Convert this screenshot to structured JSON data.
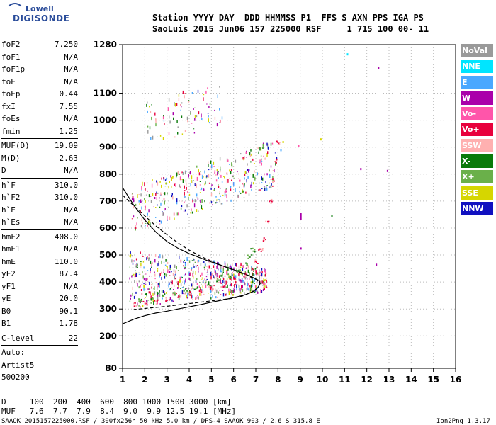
{
  "logo": {
    "line1": "Lowell",
    "line2": "DIGISONDE"
  },
  "header": {
    "line1": "Station YYYY DAY  DDD HHMMSS P1  FFS S AXN PPS IGA PS",
    "line2": "SaoLuis 2015 Jun06 157 225000 RSF     1 715 100 00- 11"
  },
  "params": {
    "group1": [
      {
        "k": "foF2",
        "v": "7.250"
      },
      {
        "k": "foF1",
        "v": "N/A"
      },
      {
        "k": "foF1p",
        "v": "N/A"
      },
      {
        "k": "foE",
        "v": "N/A"
      },
      {
        "k": "foEp",
        "v": "0.44"
      },
      {
        "k": "fxI",
        "v": "7.55"
      },
      {
        "k": "foEs",
        "v": "N/A"
      },
      {
        "k": "fmin",
        "v": "1.25"
      }
    ],
    "group2": [
      {
        "k": "MUF(D)",
        "v": "19.09"
      },
      {
        "k": "M(D)",
        "v": "2.63"
      },
      {
        "k": "D",
        "v": "N/A"
      }
    ],
    "group3": [
      {
        "k": "h`F",
        "v": "310.0"
      },
      {
        "k": "h`F2",
        "v": "310.0"
      },
      {
        "k": "h`E",
        "v": "N/A"
      },
      {
        "k": "h`Es",
        "v": "N/A"
      }
    ],
    "group4": [
      {
        "k": "hmF2",
        "v": "408.0"
      },
      {
        "k": "hmF1",
        "v": "N/A"
      },
      {
        "k": "hmE",
        "v": "110.0"
      },
      {
        "k": "yF2",
        "v": "87.4"
      },
      {
        "k": "yF1",
        "v": "N/A"
      },
      {
        "k": "yE",
        "v": "20.0"
      },
      {
        "k": "B0",
        "v": "90.1"
      },
      {
        "k": "B1",
        "v": "1.78"
      }
    ],
    "clevel": {
      "k": "C-level",
      "v": "22"
    },
    "auto": [
      "Auto:",
      "Artist5",
      "500200"
    ]
  },
  "legend": [
    {
      "label": "NoVal",
      "color": "#9a9a9a"
    },
    {
      "label": "NNE",
      "color": "#00e5ff"
    },
    {
      "label": "E",
      "color": "#4aa8ff"
    },
    {
      "label": "W",
      "color": "#aa00aa"
    },
    {
      "label": "Vo-",
      "color": "#ff55aa"
    },
    {
      "label": "Vo+",
      "color": "#e8003c"
    },
    {
      "label": "SSW",
      "color": "#ffb0b0"
    },
    {
      "label": "X-",
      "color": "#0a7a0a"
    },
    {
      "label": "X+",
      "color": "#6ab04a"
    },
    {
      "label": "SSE",
      "color": "#d6d600"
    },
    {
      "label": "NNW",
      "color": "#1010c0"
    }
  ],
  "footer": {
    "row1": "D     100  200  400  600  800 1000 1500 3000 [km]",
    "row2": "MUF   7.6  7.7  7.9  8.4  9.0  9.9 12.5 19.1 [MHz]",
    "file": "SAAOK_2015157225000.RSF / 300fx256h 50 kHz 5.0 km / DPS-4 SAAOK 903 / 2.6 S 315.8 E",
    "version": "Ion2Png 1.3.17"
  },
  "chart_data": {
    "type": "scatter",
    "xlabel": "",
    "ylabel": "",
    "xlim": [
      1,
      16
    ],
    "ylim": [
      80,
      1280
    ],
    "xticks": [
      1,
      2,
      3,
      4,
      5,
      6,
      7,
      8,
      9,
      10,
      11,
      12,
      13,
      14,
      15,
      16
    ],
    "yticks": [
      80,
      200,
      300,
      400,
      500,
      600,
      700,
      800,
      900,
      1000,
      1100,
      1280
    ],
    "grid": "dotted",
    "legend_placement": "right",
    "traces": [
      {
        "name": "true-height-profile",
        "style": "solid",
        "points": [
          [
            1,
            245
          ],
          [
            1.5,
            262
          ],
          [
            2,
            275
          ],
          [
            2.5,
            285
          ],
          [
            3,
            292
          ],
          [
            3.5,
            300
          ],
          [
            4,
            308
          ],
          [
            4.5,
            316
          ],
          [
            5,
            325
          ],
          [
            5.5,
            333
          ],
          [
            6,
            342
          ],
          [
            6.5,
            352
          ],
          [
            6.9,
            365
          ],
          [
            7.1,
            380
          ],
          [
            7.2,
            395
          ],
          [
            7.15,
            405
          ],
          [
            6.8,
            420
          ],
          [
            6.2,
            440
          ],
          [
            5.5,
            460
          ],
          [
            4.8,
            480
          ],
          [
            4,
            505
          ],
          [
            3.5,
            525
          ],
          [
            3,
            550
          ],
          [
            2.5,
            585
          ],
          [
            2,
            630
          ],
          [
            1.5,
            685
          ],
          [
            1,
            750
          ]
        ]
      },
      {
        "name": "model-trace",
        "style": "dashed",
        "points": [
          [
            1,
            722
          ],
          [
            1.5,
            683
          ],
          [
            2,
            645
          ],
          [
            2.5,
            608
          ],
          [
            3,
            575
          ],
          [
            3.5,
            545
          ],
          [
            4,
            518
          ],
          [
            4.5,
            496
          ],
          [
            5,
            477
          ],
          [
            5.5,
            460
          ],
          [
            6,
            444
          ],
          [
            6.5,
            428
          ],
          [
            7,
            410
          ],
          [
            7.2,
            395
          ],
          [
            7.1,
            380
          ],
          [
            6.8,
            362
          ],
          [
            6.4,
            348
          ],
          [
            6,
            340
          ],
          [
            5,
            330
          ],
          [
            4,
            320
          ],
          [
            3,
            310
          ],
          [
            2,
            302
          ],
          [
            1.5,
            298
          ]
        ]
      },
      {
        "name": "o-trace",
        "style": "points",
        "points": [
          [
            1.5,
            318
          ],
          [
            2,
            322
          ],
          [
            2.5,
            328
          ],
          [
            3,
            338
          ],
          [
            3.5,
            348
          ],
          [
            4,
            358
          ],
          [
            4.5,
            368
          ],
          [
            5,
            378
          ],
          [
            5.5,
            392
          ],
          [
            6,
            408
          ],
          [
            6.5,
            428
          ],
          [
            6.8,
            450
          ],
          [
            7,
            478
          ],
          [
            7.2,
            520
          ],
          [
            7.35,
            560
          ],
          [
            7.5,
            620
          ],
          [
            7.65,
            700
          ],
          [
            7.8,
            780
          ],
          [
            7.9,
            850
          ],
          [
            7.95,
            920
          ]
        ]
      },
      {
        "name": "x-trace",
        "style": "points",
        "points": [
          [
            1.8,
            332
          ],
          [
            2.3,
            340
          ],
          [
            2.8,
            350
          ],
          [
            3.3,
            360
          ],
          [
            3.8,
            370
          ],
          [
            4.3,
            382
          ],
          [
            4.8,
            394
          ],
          [
            5.3,
            408
          ],
          [
            5.8,
            425
          ],
          [
            6.2,
            445
          ],
          [
            6.5,
            468
          ],
          [
            6.7,
            495
          ],
          [
            6.85,
            520
          ]
        ]
      }
    ],
    "clouds": [
      {
        "name": "F-region-spread",
        "x": [
          1.3,
          7.5
        ],
        "y": [
          300,
          560
        ]
      },
      {
        "name": "multi-hop",
        "x": [
          1.4,
          7.9
        ],
        "y": [
          580,
          920
        ]
      },
      {
        "name": "high-spread",
        "x": [
          2,
          5.5
        ],
        "y": [
          900,
          1120
        ]
      }
    ],
    "isolated": [
      {
        "x": 11.1,
        "y": 1240,
        "color": "#00e5ff"
      },
      {
        "x": 12.5,
        "y": 1190,
        "color": "#aa00aa"
      },
      {
        "x": 9.0,
        "y": 630,
        "color": "#aa00aa",
        "h": 25
      },
      {
        "x": 10.4,
        "y": 640,
        "color": "#0a7a0a"
      },
      {
        "x": 11.7,
        "y": 815,
        "color": "#aa00aa"
      },
      {
        "x": 12.9,
        "y": 808,
        "color": "#aa00aa"
      },
      {
        "x": 9.9,
        "y": 925,
        "color": "#d6d600"
      },
      {
        "x": 9.0,
        "y": 520,
        "color": "#aa00aa"
      },
      {
        "x": 12.4,
        "y": 460,
        "color": "#aa00aa"
      },
      {
        "x": 8.1,
        "y": 885,
        "color": "#4aa8ff"
      },
      {
        "x": 7.9,
        "y": 855,
        "color": "#1010c0"
      },
      {
        "x": 8.2,
        "y": 915,
        "color": "#d6d600"
      },
      {
        "x": 8.9,
        "y": 900,
        "color": "#ff55aa"
      }
    ]
  }
}
